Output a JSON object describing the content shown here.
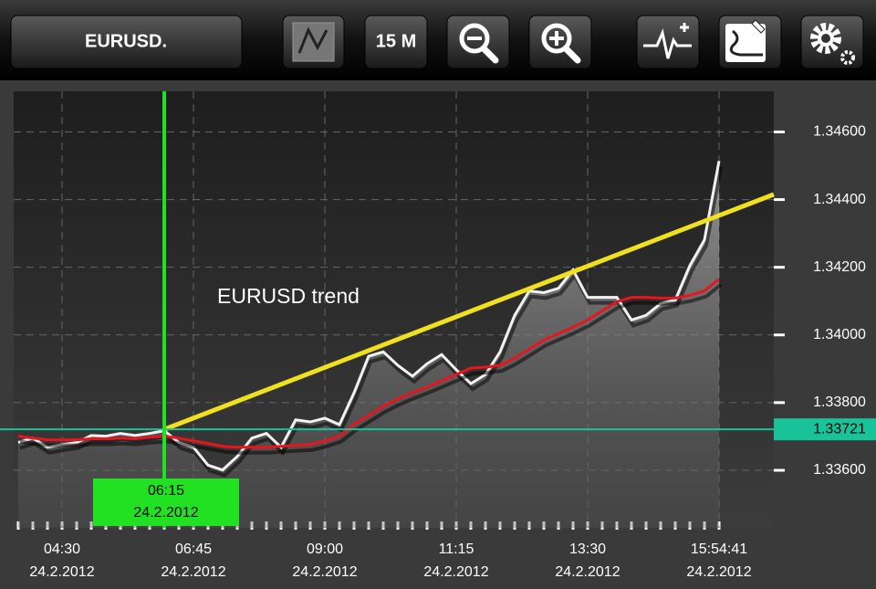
{
  "toolbar": {
    "symbol": "EURUSD.",
    "timeframe": "15 M"
  },
  "chart_data": {
    "type": "line",
    "annotation": "EURUSD trend",
    "categories": [
      null,
      null,
      null,
      "04:30",
      null,
      null,
      null,
      null,
      null,
      null,
      null,
      null,
      "06:45",
      null,
      null,
      null,
      null,
      null,
      null,
      null,
      null,
      "09:00",
      null,
      null,
      null,
      null,
      null,
      null,
      null,
      null,
      "11:15",
      null,
      null,
      null,
      null,
      null,
      null,
      null,
      null,
      "13:30",
      null,
      null,
      null,
      null,
      null,
      null,
      null,
      null,
      "15:54:41"
    ],
    "dates": [
      null,
      null,
      null,
      "24.2.2012",
      null,
      null,
      null,
      null,
      null,
      null,
      null,
      null,
      "24.2.2012",
      null,
      null,
      null,
      null,
      null,
      null,
      null,
      null,
      "24.2.2012",
      null,
      null,
      null,
      null,
      null,
      null,
      null,
      null,
      "24.2.2012",
      null,
      null,
      null,
      null,
      null,
      null,
      null,
      null,
      "24.2.2012",
      null,
      null,
      null,
      null,
      null,
      null,
      null,
      null,
      "24.2.2012"
    ],
    "series": [
      {
        "color": "#f2f2f2",
        "values": [
          1.33682,
          1.33695,
          1.33668,
          1.33676,
          1.33682,
          1.33703,
          1.33701,
          1.33709,
          1.33703,
          1.33709,
          1.33717,
          1.33682,
          1.33668,
          1.33615,
          1.33601,
          1.33641,
          1.33695,
          1.33709,
          1.33668,
          1.33749,
          1.33743,
          1.33754,
          1.33735,
          1.33829,
          1.33937,
          1.3395,
          1.3391,
          1.33878,
          1.33915,
          1.33942,
          1.33897,
          1.33856,
          1.33883,
          1.3395,
          1.34058,
          1.3413,
          1.34125,
          1.34138,
          1.34192,
          1.34111,
          1.34111,
          1.34111,
          1.34044,
          1.34058,
          1.34093,
          1.34103,
          1.34205,
          1.34281,
          1.34514
        ]
      },
      {
        "color": "#e8141e",
        "values": [
          1.33701,
          1.33695,
          1.3369,
          1.3369,
          1.3369,
          1.33693,
          1.33693,
          1.33695,
          1.33693,
          1.33698,
          1.33701,
          1.33695,
          1.33687,
          1.33679,
          1.33671,
          1.33668,
          1.33668,
          1.33668,
          1.33671,
          1.33674,
          1.33676,
          1.33687,
          1.33701,
          1.33735,
          1.33762,
          1.33789,
          1.33811,
          1.33829,
          1.33846,
          1.33864,
          1.33883,
          1.33902,
          1.33905,
          1.3391,
          1.33931,
          1.33958,
          1.33985,
          1.34004,
          1.34023,
          1.34044,
          1.34071,
          1.34098,
          1.34111,
          1.34111,
          1.34109,
          1.34109,
          1.34117,
          1.3413,
          1.34165
        ]
      }
    ],
    "trendline": {
      "color": "#f0e01e",
      "x": [
        10,
        48
      ],
      "y": [
        1.33721,
        1.34353
      ]
    },
    "cursor": {
      "x": 10,
      "time": "06:15",
      "date": "24.2.2012",
      "color": "#22e022",
      "price": {
        "value": 1.33721,
        "label": "1.33721"
      },
      "price_color": "#19c39a"
    },
    "ylim": [
      1.3343,
      1.3472
    ],
    "yticks": [
      {
        "value": 1.346,
        "label": "1.34600"
      },
      {
        "value": 1.344,
        "label": "1.34400"
      },
      {
        "value": 1.342,
        "label": "1.34200"
      },
      {
        "value": 1.34,
        "label": "1.34000"
      },
      {
        "value": 1.338,
        "label": "1.33800"
      },
      {
        "value": 1.336,
        "label": "1.33600"
      }
    ],
    "grid": true
  }
}
